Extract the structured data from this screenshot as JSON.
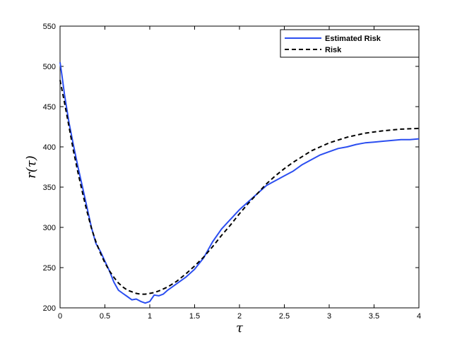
{
  "chart_data": {
    "type": "line",
    "title": "",
    "xlabel": "τ",
    "ylabel": "r(τ)",
    "xlim": [
      0,
      4
    ],
    "ylim": [
      200,
      550
    ],
    "xticks": [
      0,
      0.5,
      1,
      1.5,
      2,
      2.5,
      3,
      3.5,
      4
    ],
    "xtick_labels": [
      "0",
      "0.5",
      "1",
      "1.5",
      "2",
      "2.5",
      "3",
      "3.5",
      "4"
    ],
    "yticks": [
      200,
      250,
      300,
      350,
      400,
      450,
      500,
      550
    ],
    "ytick_labels": [
      "200",
      "250",
      "300",
      "350",
      "400",
      "450",
      "500",
      "550"
    ],
    "grid": false,
    "legend_position": "top-right",
    "series": [
      {
        "name": "Estimated Risk",
        "color": "#2b4ef0",
        "dash": "solid",
        "x": [
          0,
          0.02,
          0.05,
          0.1,
          0.15,
          0.2,
          0.25,
          0.3,
          0.35,
          0.4,
          0.45,
          0.5,
          0.55,
          0.6,
          0.65,
          0.7,
          0.75,
          0.8,
          0.85,
          0.9,
          0.95,
          1.0,
          1.05,
          1.1,
          1.15,
          1.2,
          1.3,
          1.4,
          1.5,
          1.6,
          1.7,
          1.8,
          1.9,
          2.0,
          2.1,
          2.2,
          2.3,
          2.4,
          2.5,
          2.6,
          2.7,
          2.8,
          2.9,
          3.0,
          3.1,
          3.2,
          3.3,
          3.4,
          3.5,
          3.6,
          3.7,
          3.8,
          3.9,
          4.0
        ],
        "y": [
          505,
          490,
          465,
          430,
          402,
          375,
          350,
          325,
          300,
          280,
          270,
          258,
          246,
          232,
          222,
          218,
          214,
          210,
          211,
          208,
          206,
          208,
          216,
          215,
          217,
          222,
          230,
          238,
          248,
          262,
          282,
          298,
          310,
          322,
          332,
          342,
          352,
          358,
          364,
          370,
          378,
          384,
          390,
          394,
          398,
          400,
          403,
          405,
          406,
          407,
          408,
          409,
          409,
          410
        ]
      },
      {
        "name": "Risk",
        "color": "#000000",
        "dash": "dashed",
        "x": [
          0,
          0.05,
          0.1,
          0.15,
          0.2,
          0.25,
          0.3,
          0.35,
          0.4,
          0.45,
          0.5,
          0.55,
          0.6,
          0.65,
          0.7,
          0.75,
          0.8,
          0.85,
          0.9,
          0.95,
          1.0,
          1.05,
          1.1,
          1.2,
          1.3,
          1.4,
          1.5,
          1.6,
          1.7,
          1.8,
          1.9,
          2.0,
          2.1,
          2.2,
          2.3,
          2.4,
          2.5,
          2.6,
          2.7,
          2.8,
          2.9,
          3.0,
          3.2,
          3.4,
          3.6,
          3.8,
          4.0
        ],
        "y": [
          483,
          455,
          425,
          395,
          368,
          343,
          320,
          299,
          282,
          268,
          256,
          246,
          238,
          231,
          226,
          222,
          220,
          218,
          217,
          217,
          218,
          219,
          221,
          226,
          233,
          242,
          252,
          263,
          276,
          290,
          303,
          317,
          330,
          342,
          354,
          364,
          373,
          381,
          388,
          395,
          400,
          405,
          412,
          417,
          420,
          422,
          423
        ]
      }
    ]
  }
}
